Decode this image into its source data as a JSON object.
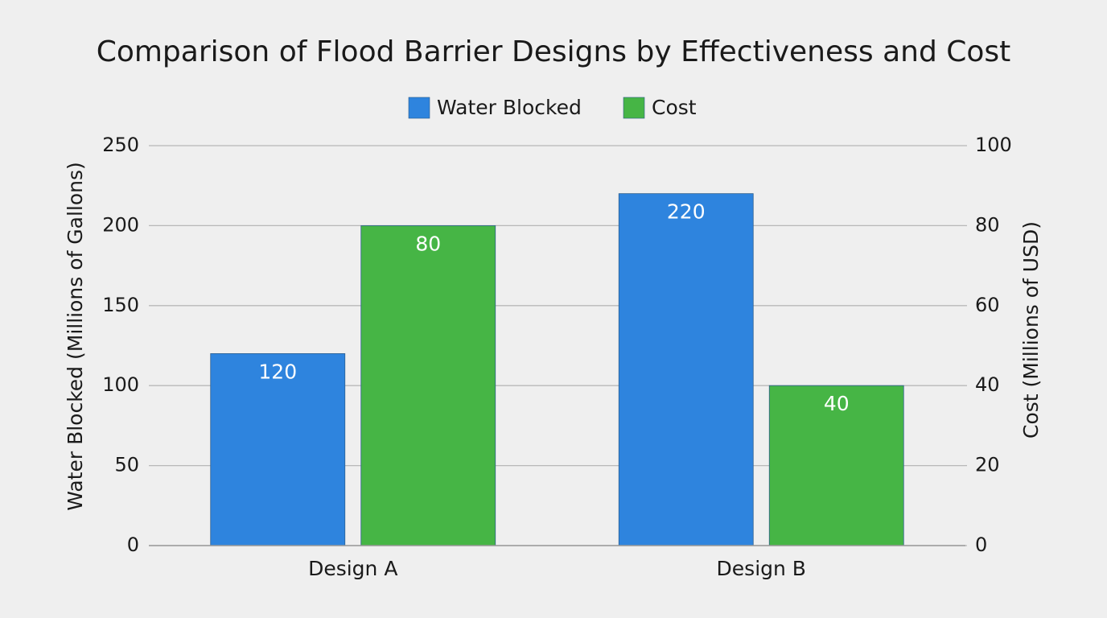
{
  "chart_data": {
    "type": "bar",
    "title": "Comparison of Flood Barrier Designs by Effectiveness and Cost",
    "categories": [
      "Design A",
      "Design B"
    ],
    "series": [
      {
        "name": "Water Blocked",
        "color": "#2e84de",
        "values": [
          120,
          220
        ]
      },
      {
        "name": "Cost",
        "color": "#46b545",
        "values": [
          80,
          40
        ],
        "axis": "y2"
      }
    ],
    "ylabel": "Water Blocked (Millions of Gallons)",
    "y2label": "Cost (Millions of USD)",
    "ylim": [
      0,
      250
    ],
    "yticks": [
      0,
      50,
      100,
      150,
      200,
      250
    ],
    "y2lim": [
      0,
      100
    ],
    "y2ticks": [
      0,
      20,
      40,
      60,
      80,
      100
    ],
    "grid": true,
    "legend": "top"
  }
}
